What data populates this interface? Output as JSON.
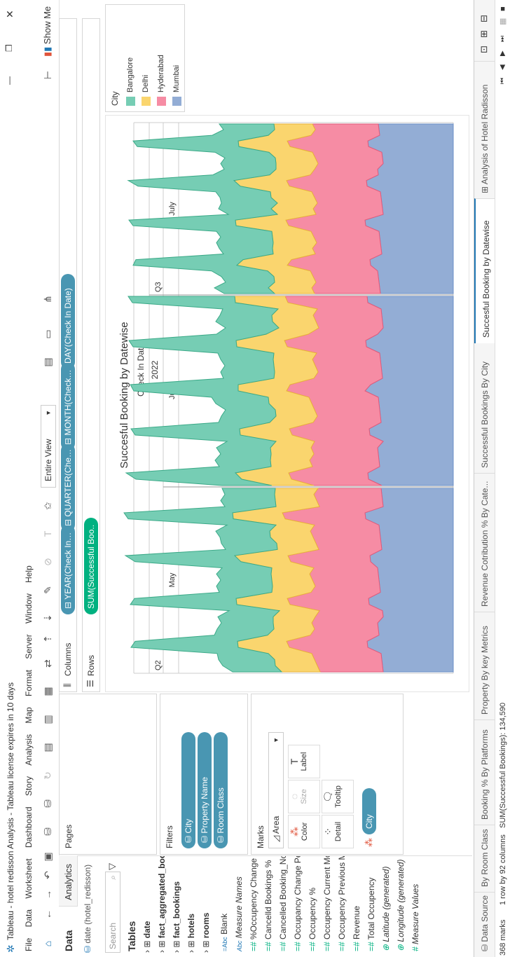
{
  "window": {
    "title": "Tableau - hotel redisson Analysis - Tableau license expires in 10 days",
    "minimize": "—",
    "restore": "❐",
    "close": "✕"
  },
  "menu": [
    "File",
    "Data",
    "Worksheet",
    "Dashboard",
    "Story",
    "Analysis",
    "Map",
    "Format",
    "Server",
    "Window",
    "Help"
  ],
  "toolbar": {
    "fit": "Entire View",
    "show_me": "Show Me"
  },
  "data_pane": {
    "tab_data": "Data",
    "tab_analytics": "Analytics",
    "source": "date (hotel_redisson)",
    "search_placeholder": "Search",
    "tables_header": "Tables",
    "tables": [
      "date",
      "fact_aggregated_bookings",
      "fact_bookings",
      "hotels",
      "rooms"
    ],
    "fields": [
      {
        "type": "=Abc",
        "name": "Blank"
      },
      {
        "type": "Abc",
        "name": "Measure Names"
      },
      {
        "type": "=#",
        "name": "%Occupency Change Per ..."
      },
      {
        "type": "=#",
        "name": "Cancelld Bookings %"
      },
      {
        "type": "=#",
        "name": "Cancelled Booking_No"
      },
      {
        "type": "=#",
        "name": "Occupancy Change Per M..."
      },
      {
        "type": "=#",
        "name": "Occupency %"
      },
      {
        "type": "=#",
        "name": "Occupency Current Month"
      },
      {
        "type": "=#",
        "name": "Occupency Previous Month"
      },
      {
        "type": "=#",
        "name": "Revenue"
      },
      {
        "type": "=#",
        "name": "Total Occupency"
      },
      {
        "type": "⊕",
        "name": "Latitude (generated)"
      },
      {
        "type": "⊕",
        "name": "Longitude (generated)"
      },
      {
        "type": "#",
        "name": "Measure Values"
      }
    ]
  },
  "pages": {
    "label": "Pages"
  },
  "filters": {
    "label": "Filters",
    "items": [
      "City",
      "Property Name",
      "Room Class"
    ]
  },
  "marks": {
    "label": "Marks",
    "type": "Area",
    "buttons": [
      "Color",
      "Size",
      "Label",
      "Detail",
      "Tooltip"
    ],
    "pill": "City"
  },
  "shelves": {
    "columns_label": "Columns",
    "rows_label": "Rows",
    "columns": [
      "YEAR(Check In Da..",
      "QUARTER(Check I..",
      "MONTH(Check In ..",
      "DAY(Check In Date)"
    ],
    "rows": [
      "SUM(Successful Boo.."
    ]
  },
  "view": {
    "title": "Succesful Booking  by Datewise",
    "header_field": "Check In Date",
    "year": "2022",
    "quarters": [
      "Q2",
      "Q3"
    ],
    "months": [
      "May",
      "June",
      "July"
    ]
  },
  "legend": {
    "title": "City",
    "items": [
      {
        "label": "Bangalore",
        "color": "#76cdb4"
      },
      {
        "label": "Delhi",
        "color": "#fad56e"
      },
      {
        "label": "Hyderabad",
        "color": "#f68ca4"
      },
      {
        "label": "Mumbai",
        "color": "#93add5"
      }
    ]
  },
  "tabs": {
    "data_source": "Data Source",
    "sheets": [
      "By Room Class",
      "Booking % By Platforms",
      "Property By key Metrics",
      "Revenue Cotribution % By Cate...",
      "Successful Bookings By City",
      "Succesful Booking  by Datewise",
      "Analysis of Hotel Radisson"
    ],
    "active_index": 5
  },
  "status": {
    "marks": "368 marks",
    "dims": "1 row by 92 columns",
    "sum": "SUM(Successful Bookings): 134,590"
  }
}
